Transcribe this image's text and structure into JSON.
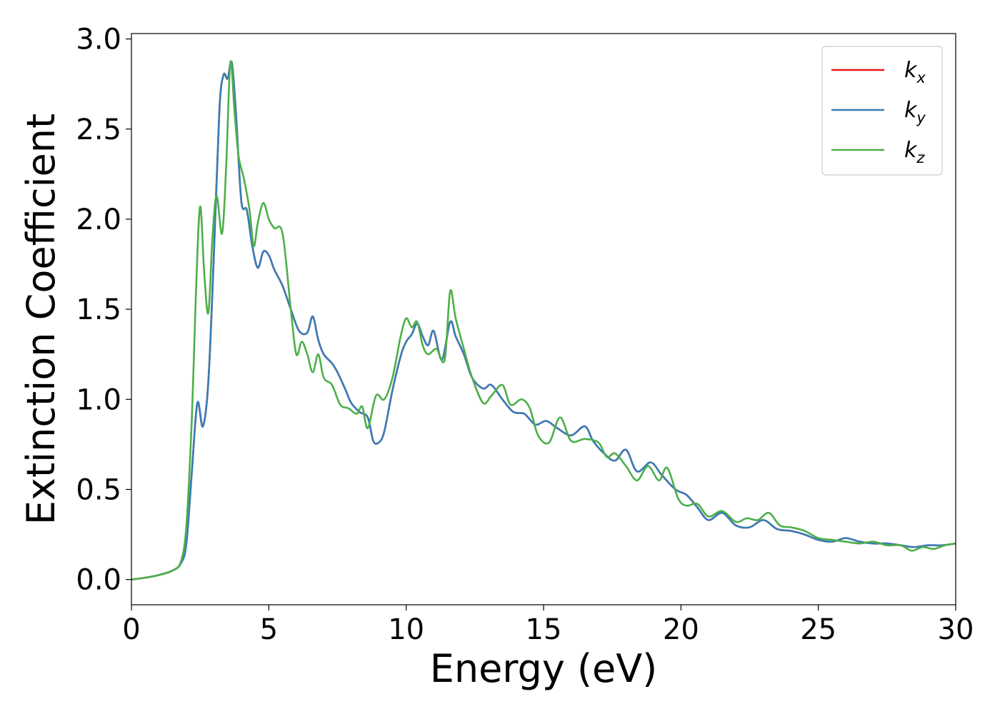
{
  "chart_data": {
    "type": "line",
    "xlabel": "Energy (eV)",
    "ylabel": "Extinction Coefficient",
    "xlim": [
      0,
      30
    ],
    "ylim": [
      -0.14,
      3.03
    ],
    "xticks": [
      0,
      5,
      10,
      15,
      20,
      25,
      30
    ],
    "yticks": [
      0.0,
      0.5,
      1.0,
      1.5,
      2.0,
      2.5,
      3.0
    ],
    "xtick_labels": [
      "0",
      "5",
      "10",
      "15",
      "20",
      "25",
      "30"
    ],
    "ytick_labels": [
      "0.0",
      "0.5",
      "1.0",
      "1.5",
      "2.0",
      "2.5",
      "3.0"
    ],
    "grid": false,
    "legend_position": "top-right",
    "series": [
      {
        "name": "k_x",
        "label_base": "k",
        "label_sub": "x",
        "color": "#e41a1c",
        "points": [
          [
            0,
            0
          ],
          [
            0.5,
            0.01
          ],
          [
            1,
            0.025
          ],
          [
            1.5,
            0.05
          ],
          [
            1.8,
            0.09
          ],
          [
            2.0,
            0.2
          ],
          [
            2.2,
            0.6
          ],
          [
            2.4,
            0.98
          ],
          [
            2.6,
            0.85
          ],
          [
            2.8,
            1.1
          ],
          [
            3.0,
            1.8
          ],
          [
            3.2,
            2.6
          ],
          [
            3.35,
            2.8
          ],
          [
            3.5,
            2.78
          ],
          [
            3.65,
            2.87
          ],
          [
            3.8,
            2.6
          ],
          [
            4.0,
            2.1
          ],
          [
            4.2,
            2.05
          ],
          [
            4.4,
            1.85
          ],
          [
            4.6,
            1.73
          ],
          [
            4.8,
            1.82
          ],
          [
            5.0,
            1.8
          ],
          [
            5.2,
            1.72
          ],
          [
            5.5,
            1.63
          ],
          [
            5.8,
            1.5
          ],
          [
            6.1,
            1.38
          ],
          [
            6.4,
            1.37
          ],
          [
            6.6,
            1.46
          ],
          [
            6.8,
            1.33
          ],
          [
            7.0,
            1.25
          ],
          [
            7.3,
            1.2
          ],
          [
            7.5,
            1.15
          ],
          [
            7.8,
            1.05
          ],
          [
            8.0,
            0.98
          ],
          [
            8.3,
            0.93
          ],
          [
            8.6,
            0.9
          ],
          [
            8.8,
            0.77
          ],
          [
            9.0,
            0.76
          ],
          [
            9.2,
            0.82
          ],
          [
            9.5,
            1.05
          ],
          [
            9.8,
            1.24
          ],
          [
            10.0,
            1.32
          ],
          [
            10.2,
            1.36
          ],
          [
            10.4,
            1.42
          ],
          [
            10.6,
            1.35
          ],
          [
            10.8,
            1.3
          ],
          [
            11.0,
            1.38
          ],
          [
            11.3,
            1.22
          ],
          [
            11.6,
            1.43
          ],
          [
            11.8,
            1.35
          ],
          [
            12.1,
            1.25
          ],
          [
            12.4,
            1.12
          ],
          [
            12.8,
            1.06
          ],
          [
            13.1,
            1.08
          ],
          [
            13.5,
            1.0
          ],
          [
            13.9,
            0.93
          ],
          [
            14.3,
            0.92
          ],
          [
            14.7,
            0.86
          ],
          [
            15.1,
            0.88
          ],
          [
            15.5,
            0.84
          ],
          [
            16.0,
            0.8
          ],
          [
            16.5,
            0.85
          ],
          [
            16.8,
            0.77
          ],
          [
            17.2,
            0.7
          ],
          [
            17.6,
            0.66
          ],
          [
            18.0,
            0.72
          ],
          [
            18.4,
            0.6
          ],
          [
            18.9,
            0.65
          ],
          [
            19.3,
            0.58
          ],
          [
            19.8,
            0.5
          ],
          [
            20.2,
            0.47
          ],
          [
            20.6,
            0.4
          ],
          [
            21.0,
            0.33
          ],
          [
            21.5,
            0.37
          ],
          [
            22.0,
            0.3
          ],
          [
            22.5,
            0.29
          ],
          [
            23.0,
            0.33
          ],
          [
            23.5,
            0.28
          ],
          [
            24.0,
            0.27
          ],
          [
            24.5,
            0.25
          ],
          [
            25.0,
            0.22
          ],
          [
            25.5,
            0.21
          ],
          [
            26.0,
            0.23
          ],
          [
            26.5,
            0.21
          ],
          [
            27.0,
            0.2
          ],
          [
            27.5,
            0.2
          ],
          [
            28.0,
            0.19
          ],
          [
            28.5,
            0.18
          ],
          [
            29.0,
            0.19
          ],
          [
            29.5,
            0.19
          ],
          [
            30.0,
            0.2
          ]
        ]
      },
      {
        "name": "k_y",
        "label_base": "k",
        "label_sub": "y",
        "color": "#377eb8",
        "points": [
          [
            0,
            0
          ],
          [
            0.5,
            0.01
          ],
          [
            1,
            0.025
          ],
          [
            1.5,
            0.05
          ],
          [
            1.8,
            0.09
          ],
          [
            2.0,
            0.2
          ],
          [
            2.2,
            0.6
          ],
          [
            2.4,
            0.98
          ],
          [
            2.6,
            0.85
          ],
          [
            2.8,
            1.1
          ],
          [
            3.0,
            1.8
          ],
          [
            3.2,
            2.6
          ],
          [
            3.35,
            2.8
          ],
          [
            3.5,
            2.78
          ],
          [
            3.65,
            2.87
          ],
          [
            3.8,
            2.6
          ],
          [
            4.0,
            2.1
          ],
          [
            4.2,
            2.05
          ],
          [
            4.4,
            1.85
          ],
          [
            4.6,
            1.73
          ],
          [
            4.8,
            1.82
          ],
          [
            5.0,
            1.8
          ],
          [
            5.2,
            1.72
          ],
          [
            5.5,
            1.63
          ],
          [
            5.8,
            1.5
          ],
          [
            6.1,
            1.38
          ],
          [
            6.4,
            1.37
          ],
          [
            6.6,
            1.46
          ],
          [
            6.8,
            1.33
          ],
          [
            7.0,
            1.25
          ],
          [
            7.3,
            1.2
          ],
          [
            7.5,
            1.15
          ],
          [
            7.8,
            1.05
          ],
          [
            8.0,
            0.98
          ],
          [
            8.3,
            0.93
          ],
          [
            8.6,
            0.9
          ],
          [
            8.8,
            0.77
          ],
          [
            9.0,
            0.76
          ],
          [
            9.2,
            0.82
          ],
          [
            9.5,
            1.05
          ],
          [
            9.8,
            1.24
          ],
          [
            10.0,
            1.32
          ],
          [
            10.2,
            1.36
          ],
          [
            10.4,
            1.42
          ],
          [
            10.6,
            1.35
          ],
          [
            10.8,
            1.3
          ],
          [
            11.0,
            1.38
          ],
          [
            11.3,
            1.22
          ],
          [
            11.6,
            1.43
          ],
          [
            11.8,
            1.35
          ],
          [
            12.1,
            1.25
          ],
          [
            12.4,
            1.12
          ],
          [
            12.8,
            1.06
          ],
          [
            13.1,
            1.08
          ],
          [
            13.5,
            1.0
          ],
          [
            13.9,
            0.93
          ],
          [
            14.3,
            0.92
          ],
          [
            14.7,
            0.86
          ],
          [
            15.1,
            0.88
          ],
          [
            15.5,
            0.84
          ],
          [
            16.0,
            0.8
          ],
          [
            16.5,
            0.85
          ],
          [
            16.8,
            0.77
          ],
          [
            17.2,
            0.7
          ],
          [
            17.6,
            0.66
          ],
          [
            18.0,
            0.72
          ],
          [
            18.4,
            0.6
          ],
          [
            18.9,
            0.65
          ],
          [
            19.3,
            0.58
          ],
          [
            19.8,
            0.5
          ],
          [
            20.2,
            0.47
          ],
          [
            20.6,
            0.4
          ],
          [
            21.0,
            0.33
          ],
          [
            21.5,
            0.37
          ],
          [
            22.0,
            0.3
          ],
          [
            22.5,
            0.29
          ],
          [
            23.0,
            0.33
          ],
          [
            23.5,
            0.28
          ],
          [
            24.0,
            0.27
          ],
          [
            24.5,
            0.25
          ],
          [
            25.0,
            0.22
          ],
          [
            25.5,
            0.21
          ],
          [
            26.0,
            0.23
          ],
          [
            26.5,
            0.21
          ],
          [
            27.0,
            0.2
          ],
          [
            27.5,
            0.2
          ],
          [
            28.0,
            0.19
          ],
          [
            28.5,
            0.18
          ],
          [
            29.0,
            0.19
          ],
          [
            29.5,
            0.19
          ],
          [
            30.0,
            0.2
          ]
        ]
      },
      {
        "name": "k_z",
        "label_base": "k",
        "label_sub": "z",
        "color": "#4daf4a",
        "points": [
          [
            0,
            0
          ],
          [
            0.5,
            0.01
          ],
          [
            1,
            0.025
          ],
          [
            1.5,
            0.05
          ],
          [
            1.8,
            0.1
          ],
          [
            2.0,
            0.3
          ],
          [
            2.2,
            0.9
          ],
          [
            2.35,
            1.6
          ],
          [
            2.5,
            2.07
          ],
          [
            2.65,
            1.7
          ],
          [
            2.8,
            1.48
          ],
          [
            2.95,
            1.9
          ],
          [
            3.1,
            2.13
          ],
          [
            3.3,
            1.92
          ],
          [
            3.45,
            2.3
          ],
          [
            3.6,
            2.87
          ],
          [
            3.75,
            2.6
          ],
          [
            3.9,
            2.35
          ],
          [
            4.1,
            2.22
          ],
          [
            4.3,
            2.05
          ],
          [
            4.45,
            1.85
          ],
          [
            4.6,
            1.98
          ],
          [
            4.8,
            2.09
          ],
          [
            5.0,
            2.0
          ],
          [
            5.2,
            1.95
          ],
          [
            5.5,
            1.92
          ],
          [
            5.8,
            1.5
          ],
          [
            6.0,
            1.25
          ],
          [
            6.2,
            1.32
          ],
          [
            6.4,
            1.25
          ],
          [
            6.6,
            1.15
          ],
          [
            6.8,
            1.25
          ],
          [
            7.0,
            1.12
          ],
          [
            7.3,
            1.08
          ],
          [
            7.6,
            0.97
          ],
          [
            7.9,
            0.95
          ],
          [
            8.2,
            0.92
          ],
          [
            8.4,
            0.96
          ],
          [
            8.6,
            0.84
          ],
          [
            8.9,
            1.02
          ],
          [
            9.2,
            1.0
          ],
          [
            9.5,
            1.12
          ],
          [
            9.8,
            1.35
          ],
          [
            10.0,
            1.45
          ],
          [
            10.2,
            1.4
          ],
          [
            10.4,
            1.43
          ],
          [
            10.6,
            1.3
          ],
          [
            10.8,
            1.25
          ],
          [
            11.1,
            1.28
          ],
          [
            11.4,
            1.22
          ],
          [
            11.6,
            1.6
          ],
          [
            11.8,
            1.45
          ],
          [
            12.1,
            1.28
          ],
          [
            12.4,
            1.12
          ],
          [
            12.8,
            0.98
          ],
          [
            13.1,
            1.02
          ],
          [
            13.5,
            1.08
          ],
          [
            13.8,
            0.97
          ],
          [
            14.2,
            1.0
          ],
          [
            14.5,
            0.95
          ],
          [
            14.8,
            0.8
          ],
          [
            15.2,
            0.76
          ],
          [
            15.6,
            0.9
          ],
          [
            16.0,
            0.77
          ],
          [
            16.5,
            0.78
          ],
          [
            17.0,
            0.76
          ],
          [
            17.3,
            0.68
          ],
          [
            17.6,
            0.7
          ],
          [
            18.0,
            0.63
          ],
          [
            18.4,
            0.55
          ],
          [
            18.8,
            0.63
          ],
          [
            19.2,
            0.55
          ],
          [
            19.5,
            0.62
          ],
          [
            19.9,
            0.45
          ],
          [
            20.2,
            0.41
          ],
          [
            20.6,
            0.42
          ],
          [
            21.0,
            0.35
          ],
          [
            21.5,
            0.38
          ],
          [
            22.0,
            0.32
          ],
          [
            22.4,
            0.34
          ],
          [
            22.8,
            0.33
          ],
          [
            23.2,
            0.37
          ],
          [
            23.6,
            0.3
          ],
          [
            24.0,
            0.29
          ],
          [
            24.5,
            0.27
          ],
          [
            25.0,
            0.23
          ],
          [
            25.5,
            0.22
          ],
          [
            26.0,
            0.21
          ],
          [
            26.5,
            0.2
          ],
          [
            27.0,
            0.21
          ],
          [
            27.5,
            0.19
          ],
          [
            28.0,
            0.19
          ],
          [
            28.4,
            0.16
          ],
          [
            28.8,
            0.18
          ],
          [
            29.2,
            0.17
          ],
          [
            29.6,
            0.19
          ],
          [
            30.0,
            0.2
          ]
        ]
      }
    ]
  }
}
